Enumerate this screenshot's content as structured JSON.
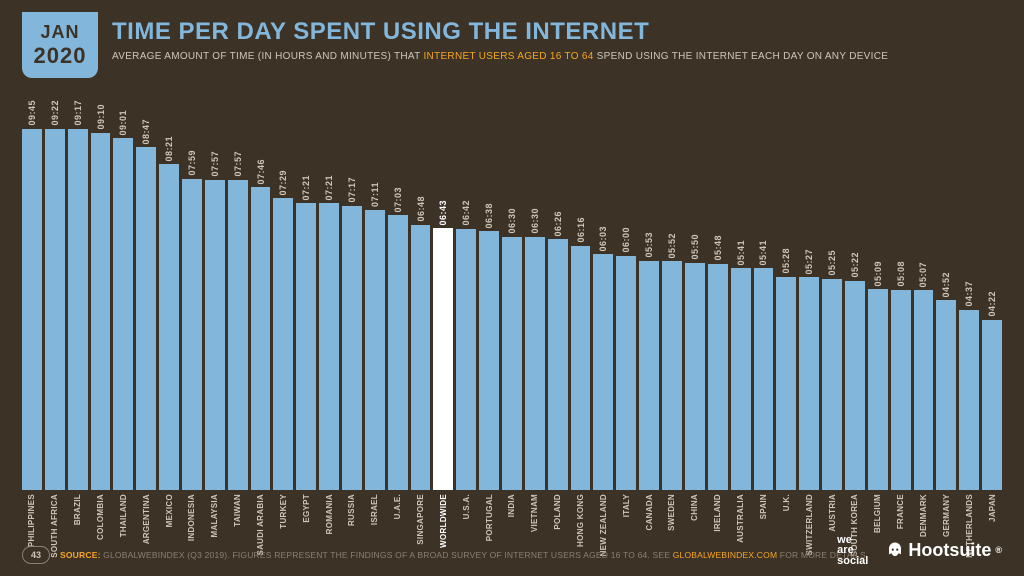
{
  "colors": {
    "background": "#3d3226",
    "accent": "#82b7db",
    "highlight_bar": "#ffffff",
    "text_light": "#cfc6b8",
    "text_muted": "#8a8072",
    "text_highlight": "#f6a623",
    "text_on_accent": "#3d3226"
  },
  "date_badge": {
    "month": "JAN",
    "year": "2020"
  },
  "title": "TIME PER DAY SPENT USING THE INTERNET",
  "subtitle_pre": "AVERAGE AMOUNT OF TIME (IN HOURS AND MINUTES) THAT ",
  "subtitle_hl": "INTERNET USERS AGED 16 TO 64",
  "subtitle_post": " SPEND USING THE INTERNET EACH DAY ON ANY DEVICE",
  "chart": {
    "type": "bar",
    "bar_color": "#82b7db",
    "highlight_color": "#ffffff",
    "value_fontsize": 9,
    "label_fontsize": 8,
    "max_minutes": 600,
    "bars": [
      {
        "label": "PHILIPPINES",
        "value": "09:45",
        "minutes": 585,
        "highlight": false
      },
      {
        "label": "SOUTH AFRICA",
        "value": "09:22",
        "minutes": 562,
        "highlight": false
      },
      {
        "label": "BRAZIL",
        "value": "09:17",
        "minutes": 557,
        "highlight": false
      },
      {
        "label": "COLOMBIA",
        "value": "09:10",
        "minutes": 550,
        "highlight": false
      },
      {
        "label": "THAILAND",
        "value": "09:01",
        "minutes": 541,
        "highlight": false
      },
      {
        "label": "ARGENTINA",
        "value": "08:47",
        "minutes": 527,
        "highlight": false
      },
      {
        "label": "MEXICO",
        "value": "08:21",
        "minutes": 501,
        "highlight": false
      },
      {
        "label": "INDONESIA",
        "value": "07:59",
        "minutes": 479,
        "highlight": false
      },
      {
        "label": "MALAYSIA",
        "value": "07:57",
        "minutes": 477,
        "highlight": false
      },
      {
        "label": "TAIWAN",
        "value": "07:57",
        "minutes": 477,
        "highlight": false
      },
      {
        "label": "SAUDI ARABIA",
        "value": "07:46",
        "minutes": 466,
        "highlight": false
      },
      {
        "label": "TURKEY",
        "value": "07:29",
        "minutes": 449,
        "highlight": false
      },
      {
        "label": "EGYPT",
        "value": "07:21",
        "minutes": 441,
        "highlight": false
      },
      {
        "label": "ROMANIA",
        "value": "07:21",
        "minutes": 441,
        "highlight": false
      },
      {
        "label": "RUSSIA",
        "value": "07:17",
        "minutes": 437,
        "highlight": false
      },
      {
        "label": "ISRAEL",
        "value": "07:11",
        "minutes": 431,
        "highlight": false
      },
      {
        "label": "U.A.E.",
        "value": "07:03",
        "minutes": 423,
        "highlight": false
      },
      {
        "label": "SINGAPORE",
        "value": "06:48",
        "minutes": 408,
        "highlight": false
      },
      {
        "label": "WORLDWIDE",
        "value": "06:43",
        "minutes": 403,
        "highlight": true
      },
      {
        "label": "U.S.A.",
        "value": "06:42",
        "minutes": 402,
        "highlight": false
      },
      {
        "label": "PORTUGAL",
        "value": "06:38",
        "minutes": 398,
        "highlight": false
      },
      {
        "label": "INDIA",
        "value": "06:30",
        "minutes": 390,
        "highlight": false
      },
      {
        "label": "VIETNAM",
        "value": "06:30",
        "minutes": 390,
        "highlight": false
      },
      {
        "label": "POLAND",
        "value": "06:26",
        "minutes": 386,
        "highlight": false
      },
      {
        "label": "HONG KONG",
        "value": "06:16",
        "minutes": 376,
        "highlight": false
      },
      {
        "label": "NEW ZEALAND",
        "value": "06:03",
        "minutes": 363,
        "highlight": false
      },
      {
        "label": "ITALY",
        "value": "06:00",
        "minutes": 360,
        "highlight": false
      },
      {
        "label": "CANADA",
        "value": "05:53",
        "minutes": 353,
        "highlight": false
      },
      {
        "label": "SWEDEN",
        "value": "05:52",
        "minutes": 352,
        "highlight": false
      },
      {
        "label": "CHINA",
        "value": "05:50",
        "minutes": 350,
        "highlight": false
      },
      {
        "label": "IRELAND",
        "value": "05:48",
        "minutes": 348,
        "highlight": false
      },
      {
        "label": "AUSTRALIA",
        "value": "05:41",
        "minutes": 341,
        "highlight": false
      },
      {
        "label": "SPAIN",
        "value": "05:41",
        "minutes": 341,
        "highlight": false
      },
      {
        "label": "U.K.",
        "value": "05:28",
        "minutes": 328,
        "highlight": false
      },
      {
        "label": "SWITZERLAND",
        "value": "05:27",
        "minutes": 327,
        "highlight": false
      },
      {
        "label": "AUSTRIA",
        "value": "05:25",
        "minutes": 325,
        "highlight": false
      },
      {
        "label": "SOUTH KOREA",
        "value": "05:22",
        "minutes": 322,
        "highlight": false
      },
      {
        "label": "BELGIUM",
        "value": "05:09",
        "minutes": 309,
        "highlight": false
      },
      {
        "label": "FRANCE",
        "value": "05:08",
        "minutes": 308,
        "highlight": false
      },
      {
        "label": "DENMARK",
        "value": "05:07",
        "minutes": 307,
        "highlight": false
      },
      {
        "label": "GERMANY",
        "value": "04:52",
        "minutes": 292,
        "highlight": false
      },
      {
        "label": "NETHERLANDS",
        "value": "04:37",
        "minutes": 277,
        "highlight": false
      },
      {
        "label": "JAPAN",
        "value": "04:22",
        "minutes": 262,
        "highlight": false
      }
    ]
  },
  "footer": {
    "page": "43",
    "source_label": "SOURCE:",
    "source_text_pre": " GLOBALWEBINDEX (Q3 2019). FIGURES REPRESENT THE FINDINGS OF A BROAD SURVEY OF INTERNET USERS AGED 16 TO 64. SEE ",
    "source_link": "GLOBALWEBINDEX.COM",
    "source_text_post": " FOR MORE DETAILS."
  },
  "logos": {
    "wearesocial_l1": "we",
    "wearesocial_l2": "are",
    "wearesocial_l3": "social",
    "hootsuite": "Hootsuite",
    "reg": "®"
  }
}
